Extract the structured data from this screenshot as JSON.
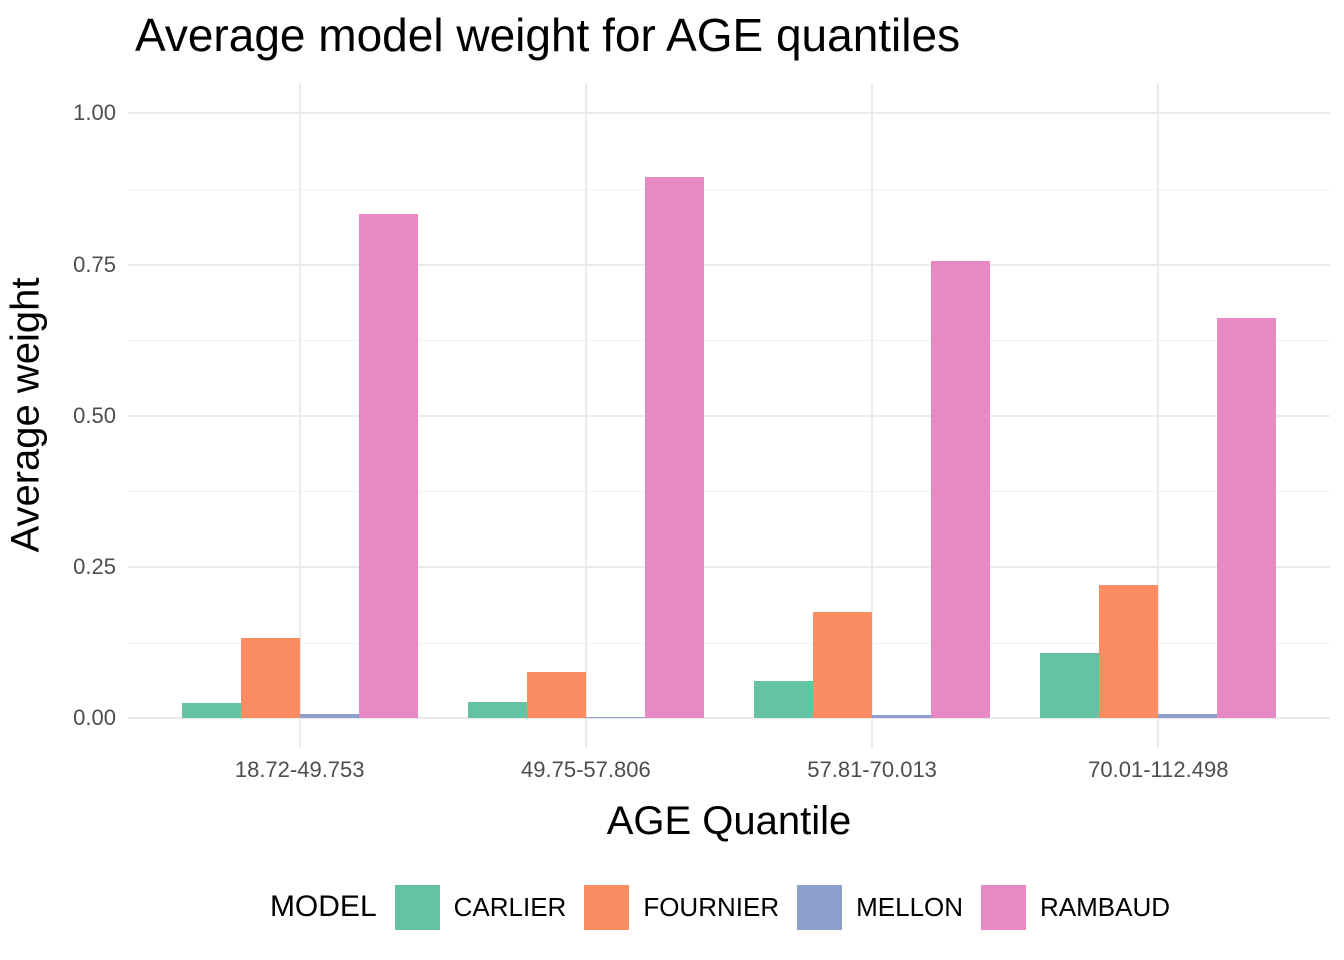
{
  "chart_data": {
    "type": "bar",
    "title": "Average model weight for AGE quantiles",
    "xlabel": "AGE Quantile",
    "ylabel": "Average weight",
    "categories": [
      "18.72-49.753",
      "49.75-57.806",
      "57.81-70.013",
      "70.01-112.498"
    ],
    "series": [
      {
        "name": "CARLIER",
        "color": "#66c2a5",
        "values": [
          0.025,
          0.027,
          0.062,
          0.108
        ]
      },
      {
        "name": "FOURNIER",
        "color": "#fc8d62",
        "values": [
          0.132,
          0.077,
          0.176,
          0.221
        ]
      },
      {
        "name": "MELLON",
        "color": "#8da0cb",
        "values": [
          0.007,
          0.003,
          0.006,
          0.007
        ]
      },
      {
        "name": "RAMBAUD",
        "color": "#e78ac3",
        "values": [
          0.833,
          0.894,
          0.756,
          0.662
        ]
      }
    ],
    "ylim": [
      0,
      1
    ],
    "y_major_ticks": [
      0,
      0.25,
      0.5,
      0.75,
      1.0
    ],
    "y_tick_labels": [
      "0.00",
      "0.25",
      "0.50",
      "0.75",
      "1.00"
    ],
    "y_minor_ticks": [
      0.125,
      0.375,
      0.625,
      0.875
    ],
    "grid": true,
    "gridline_major_color": "#ebebeb",
    "gridline_minor_color": "#f1f1f1",
    "tick_label_color": "#4d4d4d",
    "legend_position": "bottom",
    "legend_title": "MODEL"
  }
}
